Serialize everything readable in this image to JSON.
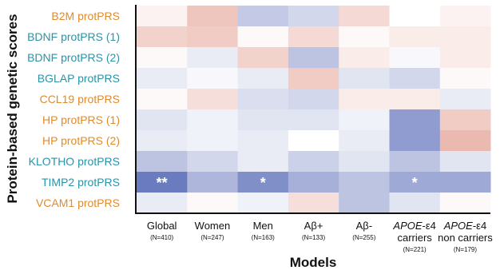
{
  "chart_data": {
    "type": "heatmap",
    "ylabel": "Protein-based genetic scores",
    "xlabel": "Models",
    "rows": [
      {
        "label": "B2M protPRS",
        "color": "#E08B2E"
      },
      {
        "label": "BDNF protPRS (1)",
        "color": "#2B93A8"
      },
      {
        "label": "BDNF protPRS (2)",
        "color": "#2B93A8"
      },
      {
        "label": "BGLAP protPRS",
        "color": "#2B93A8"
      },
      {
        "label": "CCL19 protPRS",
        "color": "#E08B2E"
      },
      {
        "label": "HP protPRS (1)",
        "color": "#E08B2E"
      },
      {
        "label": "HP protPRS (2)",
        "color": "#E08B2E"
      },
      {
        "label": "KLOTHO protPRS",
        "color": "#2B93A8"
      },
      {
        "label": "TIMP2 protPRS",
        "color": "#2B93A8"
      },
      {
        "label": "VCAM1 protPRS",
        "color": "#E08B2E"
      }
    ],
    "columns": [
      {
        "label": "Global",
        "n": "(N=410)"
      },
      {
        "label": "Women",
        "n": "(N=247)"
      },
      {
        "label": "Men",
        "n": "(N=163)"
      },
      {
        "label": "Aβ+",
        "n": "(N=133)"
      },
      {
        "label": "Aβ-",
        "n": "(N=255)"
      },
      {
        "label": "APOE-ε4 carriers",
        "line1": "APOE",
        "line1_suffix": "-ε4",
        "line2": "carriers",
        "n": "(N=221)"
      },
      {
        "label": "APOE-ε4 non carriers",
        "line1": "APOE",
        "line1_suffix": "-ε4",
        "line2": "non carriers",
        "n": "(N=179)"
      }
    ],
    "values": [
      [
        0.1,
        0.45,
        -0.4,
        -0.3,
        0.3,
        0.0,
        0.1
      ],
      [
        0.35,
        0.4,
        0.05,
        0.3,
        0.05,
        0.15,
        0.15
      ],
      [
        0.05,
        -0.15,
        0.35,
        -0.45,
        0.15,
        -0.05,
        0.15
      ],
      [
        -0.15,
        -0.05,
        -0.15,
        0.4,
        -0.2,
        -0.3,
        0.05
      ],
      [
        0.05,
        0.25,
        -0.25,
        -0.3,
        0.15,
        0.15,
        -0.15
      ],
      [
        -0.2,
        -0.1,
        -0.2,
        -0.2,
        -0.1,
        -0.75,
        0.4
      ],
      [
        -0.15,
        -0.1,
        -0.15,
        0.0,
        -0.15,
        -0.75,
        0.55
      ],
      [
        -0.45,
        -0.3,
        -0.15,
        -0.35,
        -0.2,
        -0.45,
        -0.2
      ],
      [
        -1.0,
        -0.55,
        -0.85,
        -0.6,
        -0.45,
        -0.65,
        -0.65
      ],
      [
        -0.15,
        0.05,
        -0.1,
        0.25,
        -0.45,
        -0.2,
        0.05
      ]
    ],
    "significance": [
      {
        "row": 8,
        "col": 0,
        "mark": "**"
      },
      {
        "row": 8,
        "col": 2,
        "mark": "*"
      },
      {
        "row": 8,
        "col": 5,
        "mark": "*"
      }
    ],
    "color_scale": {
      "negative": "#6B7BBF",
      "neutral": "#FFFFFF",
      "positive": "#D9806E"
    }
  }
}
